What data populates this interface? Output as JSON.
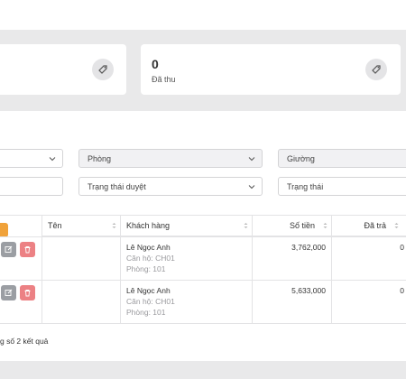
{
  "stats": {
    "right_value": "0",
    "right_label": "Đã thu"
  },
  "filters": {
    "room_select": "Phòng",
    "bed_select": "Giường",
    "approval_status_select": "Trạng thái duyệt",
    "status_select": "Trạng thái"
  },
  "table": {
    "headers": {
      "name": "Tên",
      "customer": "Khách hàng",
      "amount": "Số tiền",
      "paid": "Đã trả"
    },
    "rows": [
      {
        "customer_name": "Lê Ngọc Anh",
        "apartment": "Căn hộ: CH01",
        "room": "Phòng: 101",
        "amount": "3,762,000",
        "paid": "0"
      },
      {
        "customer_name": "Lê Ngọc Anh",
        "apartment": "Căn hộ: CH01",
        "room": "Phòng: 101",
        "amount": "5,633,000",
        "paid": "0"
      }
    ]
  },
  "pagination": {
    "summary": "g số 2 kết quả"
  },
  "colors": {
    "edit_button": "#9b9ea3",
    "delete_button": "#ec8184",
    "add_button": "#f0a23a"
  },
  "icons": {
    "stat_icon": "tag-icon",
    "edit_icon": "edit-icon",
    "delete_icon": "trash-icon"
  }
}
